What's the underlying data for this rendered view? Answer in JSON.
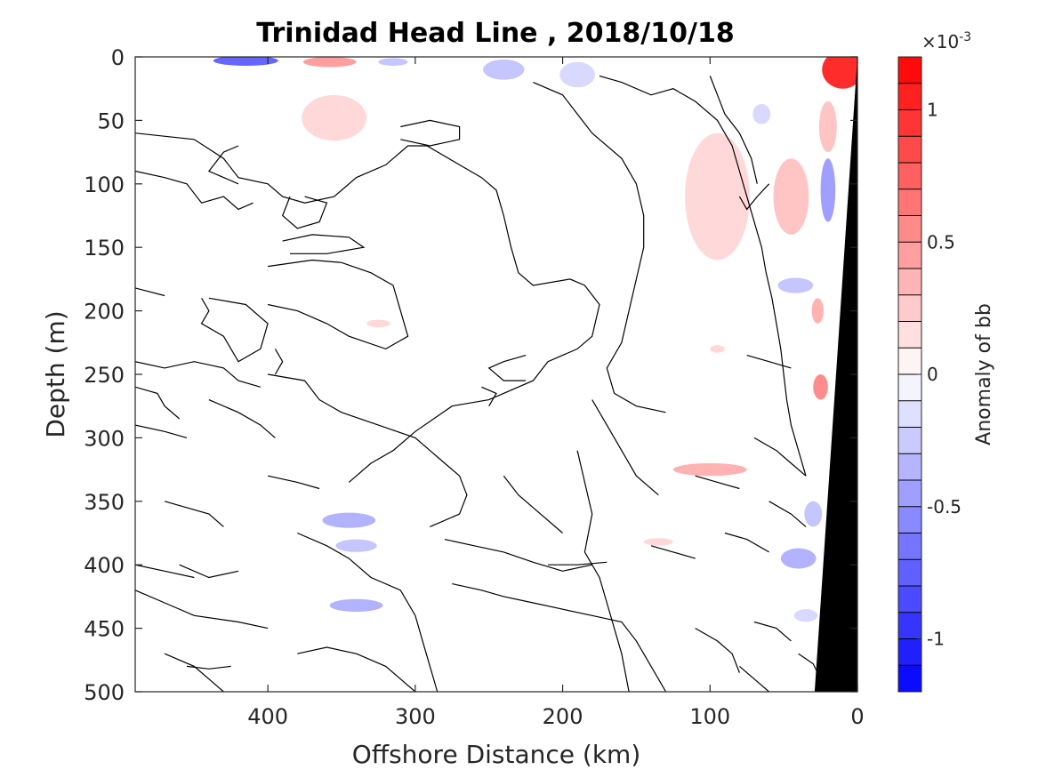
{
  "chart_data": {
    "type": "contour",
    "title": "Trinidad Head Line , 2018/10/18",
    "xlabel": "Offshore Distance (km)",
    "ylabel": "Depth (m)",
    "xlim": [
      490,
      0
    ],
    "ylim": [
      0,
      500
    ],
    "x_reversed": true,
    "y_reversed": true,
    "x_ticks": [
      400,
      300,
      200,
      100,
      0
    ],
    "x_tick_labels": [
      "400",
      "300",
      "200",
      "100",
      "0"
    ],
    "y_ticks": [
      0,
      50,
      100,
      150,
      200,
      250,
      300,
      350,
      400,
      450,
      500
    ],
    "y_tick_labels": [
      "0",
      "50",
      "100",
      "150",
      "200",
      "250",
      "300",
      "350",
      "400",
      "450",
      "500"
    ],
    "colorbar": {
      "label": "Anomaly of bb",
      "exponent": "×10",
      "exponent_power": "-3",
      "range": [
        -0.0012,
        0.0012
      ],
      "ticks": [
        1,
        0.5,
        0,
        -0.5,
        -1
      ],
      "tick_labels": [
        "1",
        "0.5",
        "0",
        "-0.5",
        "-1"
      ],
      "n_levels": 24,
      "colors": {
        "low": "#0000ff",
        "mid": "#ffffff",
        "high": "#ff0000"
      }
    },
    "bathymetry_color": "#000000",
    "bathymetry": [
      {
        "x": 0,
        "depth": 0
      },
      {
        "x": 29,
        "depth": 500
      },
      {
        "x": 0,
        "depth": 500
      }
    ],
    "anomaly_patches": [
      {
        "x": 415,
        "depth": 3,
        "rx": 22,
        "ry": 4,
        "value": -0.0008
      },
      {
        "x": 358,
        "depth": 4,
        "rx": 18,
        "ry": 4,
        "value": 0.0005
      },
      {
        "x": 315,
        "depth": 4,
        "rx": 10,
        "ry": 3,
        "value": -0.0003
      },
      {
        "x": 240,
        "depth": 10,
        "rx": 14,
        "ry": 8,
        "value": -0.0003
      },
      {
        "x": 190,
        "depth": 14,
        "rx": 12,
        "ry": 10,
        "value": -0.0002
      },
      {
        "x": 355,
        "depth": 48,
        "rx": 22,
        "ry": 18,
        "value": 0.0002
      },
      {
        "x": 95,
        "depth": 110,
        "rx": 22,
        "ry": 50,
        "value": 0.0002
      },
      {
        "x": 45,
        "depth": 110,
        "rx": 12,
        "ry": 30,
        "value": 0.0003
      },
      {
        "x": 10,
        "depth": 10,
        "rx": 14,
        "ry": 15,
        "value": 0.0011
      },
      {
        "x": 20,
        "depth": 55,
        "rx": 6,
        "ry": 20,
        "value": 0.0003
      },
      {
        "x": 20,
        "depth": 105,
        "rx": 5,
        "ry": 25,
        "value": -0.0005
      },
      {
        "x": 65,
        "depth": 45,
        "rx": 6,
        "ry": 8,
        "value": -0.0002
      },
      {
        "x": 42,
        "depth": 180,
        "rx": 12,
        "ry": 6,
        "value": -0.0003
      },
      {
        "x": 27,
        "depth": 200,
        "rx": 4,
        "ry": 10,
        "value": 0.0004
      },
      {
        "x": 25,
        "depth": 260,
        "rx": 5,
        "ry": 10,
        "value": 0.0006
      },
      {
        "x": 100,
        "depth": 325,
        "rx": 25,
        "ry": 5,
        "value": 0.0004
      },
      {
        "x": 30,
        "depth": 360,
        "rx": 6,
        "ry": 10,
        "value": -0.0003
      },
      {
        "x": 40,
        "depth": 395,
        "rx": 12,
        "ry": 8,
        "value": -0.0004
      },
      {
        "x": 345,
        "depth": 365,
        "rx": 18,
        "ry": 6,
        "value": -0.0004
      },
      {
        "x": 340,
        "depth": 385,
        "rx": 14,
        "ry": 5,
        "value": -0.0003
      },
      {
        "x": 340,
        "depth": 432,
        "rx": 18,
        "ry": 5,
        "value": -0.0004
      },
      {
        "x": 135,
        "depth": 382,
        "rx": 10,
        "ry": 3,
        "value": 0.0002
      },
      {
        "x": 35,
        "depth": 440,
        "rx": 8,
        "ry": 5,
        "value": -0.0002
      },
      {
        "x": 95,
        "depth": 230,
        "rx": 5,
        "ry": 3,
        "value": 0.0002
      },
      {
        "x": 325,
        "depth": 210,
        "rx": 8,
        "ry": 3,
        "value": 0.0002
      }
    ],
    "zero_contours": [
      [
        [
          490,
          60
        ],
        [
          450,
          65
        ],
        [
          430,
          80
        ],
        [
          420,
          95
        ],
        [
          400,
          100
        ],
        [
          390,
          110
        ],
        [
          375,
          115
        ],
        [
          355,
          110
        ],
        [
          340,
          95
        ],
        [
          320,
          85
        ],
        [
          305,
          70
        ],
        [
          292,
          70
        ],
        [
          270,
          85
        ],
        [
          255,
          95
        ],
        [
          245,
          105
        ],
        [
          240,
          125
        ],
        [
          235,
          150
        ],
        [
          230,
          170
        ],
        [
          220,
          180
        ],
        [
          195,
          175
        ],
        [
          185,
          180
        ],
        [
          175,
          195
        ],
        [
          180,
          220
        ],
        [
          190,
          230
        ],
        [
          210,
          240
        ],
        [
          220,
          255
        ],
        [
          250,
          270
        ],
        [
          275,
          275
        ],
        [
          300,
          295
        ],
        [
          315,
          310
        ],
        [
          330,
          320
        ],
        [
          345,
          335
        ]
      ],
      [
        [
          490,
          90
        ],
        [
          470,
          95
        ],
        [
          455,
          100
        ],
        [
          445,
          115
        ],
        [
          430,
          110
        ],
        [
          420,
          120
        ],
        [
          410,
          115
        ]
      ],
      [
        [
          420,
          70
        ],
        [
          430,
          75
        ],
        [
          440,
          90
        ],
        [
          420,
          100
        ]
      ],
      [
        [
          385,
          110
        ],
        [
          390,
          125
        ],
        [
          380,
          135
        ],
        [
          365,
          130
        ],
        [
          360,
          115
        ],
        [
          375,
          110
        ]
      ],
      [
        [
          310,
          55
        ],
        [
          290,
          50
        ],
        [
          270,
          55
        ],
        [
          270,
          65
        ],
        [
          290,
          70
        ],
        [
          310,
          65
        ]
      ],
      [
        [
          390,
          145
        ],
        [
          370,
          140
        ],
        [
          345,
          142
        ],
        [
          335,
          150
        ],
        [
          360,
          155
        ],
        [
          385,
          155
        ]
      ],
      [
        [
          400,
          165
        ],
        [
          370,
          160
        ],
        [
          350,
          162
        ],
        [
          330,
          170
        ],
        [
          315,
          180
        ],
        [
          310,
          200
        ],
        [
          305,
          220
        ],
        [
          320,
          230
        ],
        [
          345,
          220
        ],
        [
          360,
          210
        ],
        [
          380,
          200
        ],
        [
          400,
          195
        ]
      ],
      [
        [
          490,
          182
        ],
        [
          470,
          188
        ]
      ],
      [
        [
          445,
          190
        ],
        [
          440,
          200
        ],
        [
          445,
          210
        ],
        [
          430,
          220
        ],
        [
          420,
          240
        ],
        [
          405,
          230
        ],
        [
          400,
          210
        ],
        [
          415,
          195
        ],
        [
          440,
          190
        ]
      ],
      [
        [
          490,
          240
        ],
        [
          470,
          245
        ],
        [
          450,
          240
        ],
        [
          430,
          245
        ],
        [
          420,
          255
        ],
        [
          405,
          260
        ]
      ],
      [
        [
          400,
          250
        ],
        [
          375,
          255
        ],
        [
          365,
          270
        ],
        [
          350,
          280
        ],
        [
          325,
          290
        ],
        [
          300,
          300
        ],
        [
          290,
          310
        ],
        [
          280,
          320
        ],
        [
          270,
          330
        ],
        [
          265,
          345
        ],
        [
          270,
          360
        ],
        [
          290,
          370
        ]
      ],
      [
        [
          490,
          260
        ],
        [
          475,
          265
        ],
        [
          470,
          275
        ],
        [
          460,
          285
        ]
      ],
      [
        [
          440,
          270
        ],
        [
          420,
          280
        ],
        [
          405,
          290
        ],
        [
          395,
          300
        ]
      ],
      [
        [
          225,
          235
        ],
        [
          240,
          240
        ],
        [
          250,
          245
        ],
        [
          240,
          255
        ],
        [
          225,
          255
        ]
      ],
      [
        [
          255,
          260
        ],
        [
          245,
          265
        ],
        [
          250,
          275
        ]
      ],
      [
        [
          175,
          15
        ],
        [
          160,
          20
        ],
        [
          140,
          30
        ],
        [
          125,
          25
        ],
        [
          110,
          35
        ],
        [
          95,
          50
        ],
        [
          85,
          70
        ],
        [
          80,
          90
        ],
        [
          75,
          110
        ],
        [
          70,
          130
        ],
        [
          65,
          150
        ],
        [
          62,
          170
        ],
        [
          58,
          190
        ],
        [
          55,
          210
        ],
        [
          52,
          230
        ],
        [
          50,
          250
        ],
        [
          48,
          270
        ],
        [
          45,
          290
        ],
        [
          40,
          310
        ],
        [
          35,
          330
        ]
      ],
      [
        [
          220,
          20
        ],
        [
          200,
          30
        ],
        [
          190,
          45
        ],
        [
          180,
          60
        ],
        [
          160,
          80
        ],
        [
          150,
          100
        ],
        [
          145,
          125
        ],
        [
          145,
          150
        ],
        [
          150,
          175
        ],
        [
          155,
          200
        ],
        [
          160,
          225
        ],
        [
          170,
          245
        ],
        [
          165,
          265
        ],
        [
          150,
          275
        ],
        [
          130,
          280
        ]
      ],
      [
        [
          100,
          15
        ],
        [
          95,
          30
        ],
        [
          90,
          45
        ],
        [
          80,
          60
        ],
        [
          72,
          80
        ],
        [
          68,
          100
        ]
      ],
      [
        [
          60,
          100
        ],
        [
          68,
          110
        ],
        [
          75,
          120
        ],
        [
          80,
          110
        ]
      ],
      [
        [
          180,
          270
        ],
        [
          170,
          290
        ],
        [
          160,
          310
        ],
        [
          150,
          330
        ],
        [
          135,
          345
        ]
      ],
      [
        [
          190,
          310
        ],
        [
          185,
          335
        ],
        [
          180,
          360
        ],
        [
          185,
          390
        ],
        [
          175,
          410
        ],
        [
          170,
          430
        ],
        [
          165,
          450
        ],
        [
          160,
          470
        ],
        [
          155,
          500
        ]
      ],
      [
        [
          280,
          380
        ],
        [
          260,
          385
        ],
        [
          240,
          390
        ],
        [
          220,
          398
        ],
        [
          200,
          405
        ],
        [
          180,
          400
        ]
      ],
      [
        [
          275,
          415
        ],
        [
          255,
          420
        ],
        [
          240,
          425
        ],
        [
          220,
          430
        ],
        [
          200,
          435
        ],
        [
          180,
          440
        ],
        [
          160,
          445
        ],
        [
          150,
          460
        ],
        [
          140,
          480
        ],
        [
          130,
          500
        ]
      ],
      [
        [
          210,
          400
        ],
        [
          190,
          400
        ],
        [
          170,
          398
        ]
      ],
      [
        [
          380,
          375
        ],
        [
          360,
          385
        ],
        [
          345,
          395
        ],
        [
          330,
          410
        ],
        [
          310,
          420
        ],
        [
          300,
          440
        ],
        [
          295,
          460
        ],
        [
          290,
          480
        ],
        [
          285,
          500
        ]
      ],
      [
        [
          490,
          420
        ],
        [
          470,
          430
        ],
        [
          450,
          440
        ],
        [
          420,
          445
        ],
        [
          400,
          450
        ]
      ],
      [
        [
          470,
          470
        ],
        [
          450,
          480
        ],
        [
          440,
          490
        ],
        [
          430,
          500
        ]
      ],
      [
        [
          455,
          480
        ],
        [
          440,
          482
        ],
        [
          425,
          480
        ]
      ],
      [
        [
          380,
          470
        ],
        [
          360,
          465
        ],
        [
          340,
          470
        ],
        [
          320,
          480
        ],
        [
          310,
          490
        ],
        [
          300,
          500
        ]
      ],
      [
        [
          110,
          450
        ],
        [
          95,
          460
        ],
        [
          85,
          470
        ],
        [
          80,
          485
        ]
      ],
      [
        [
          70,
          445
        ],
        [
          55,
          450
        ],
        [
          45,
          460
        ]
      ],
      [
        [
          40,
          470
        ],
        [
          30,
          478
        ],
        [
          25,
          490
        ],
        [
          20,
          500
        ]
      ],
      [
        [
          240,
          330
        ],
        [
          230,
          345
        ],
        [
          215,
          360
        ],
        [
          200,
          375
        ]
      ],
      [
        [
          470,
          350
        ],
        [
          455,
          355
        ],
        [
          440,
          360
        ],
        [
          430,
          370
        ]
      ],
      [
        [
          395,
          230
        ],
        [
          390,
          240
        ],
        [
          395,
          250
        ]
      ],
      [
        [
          80,
          480
        ],
        [
          70,
          490
        ],
        [
          60,
          500
        ]
      ],
      [
        [
          70,
          300
        ],
        [
          55,
          310
        ],
        [
          45,
          320
        ],
        [
          35,
          330
        ]
      ],
      [
        [
          460,
          400
        ],
        [
          440,
          410
        ],
        [
          420,
          405
        ]
      ],
      [
        [
          75,
          235
        ],
        [
          60,
          240
        ],
        [
          45,
          245
        ]
      ],
      [
        [
          110,
          330
        ],
        [
          95,
          335
        ],
        [
          80,
          340
        ]
      ],
      [
        [
          90,
          375
        ],
        [
          75,
          380
        ],
        [
          60,
          390
        ]
      ],
      [
        [
          490,
          400
        ],
        [
          470,
          405
        ],
        [
          450,
          410
        ]
      ],
      [
        [
          400,
          330
        ],
        [
          380,
          335
        ],
        [
          365,
          340
        ]
      ],
      [
        [
          140,
          385
        ],
        [
          125,
          390
        ],
        [
          110,
          395
        ]
      ],
      [
        [
          60,
          350
        ],
        [
          45,
          360
        ],
        [
          35,
          370
        ]
      ],
      [
        [
          490,
          290
        ],
        [
          470,
          295
        ],
        [
          455,
          300
        ]
      ]
    ]
  }
}
